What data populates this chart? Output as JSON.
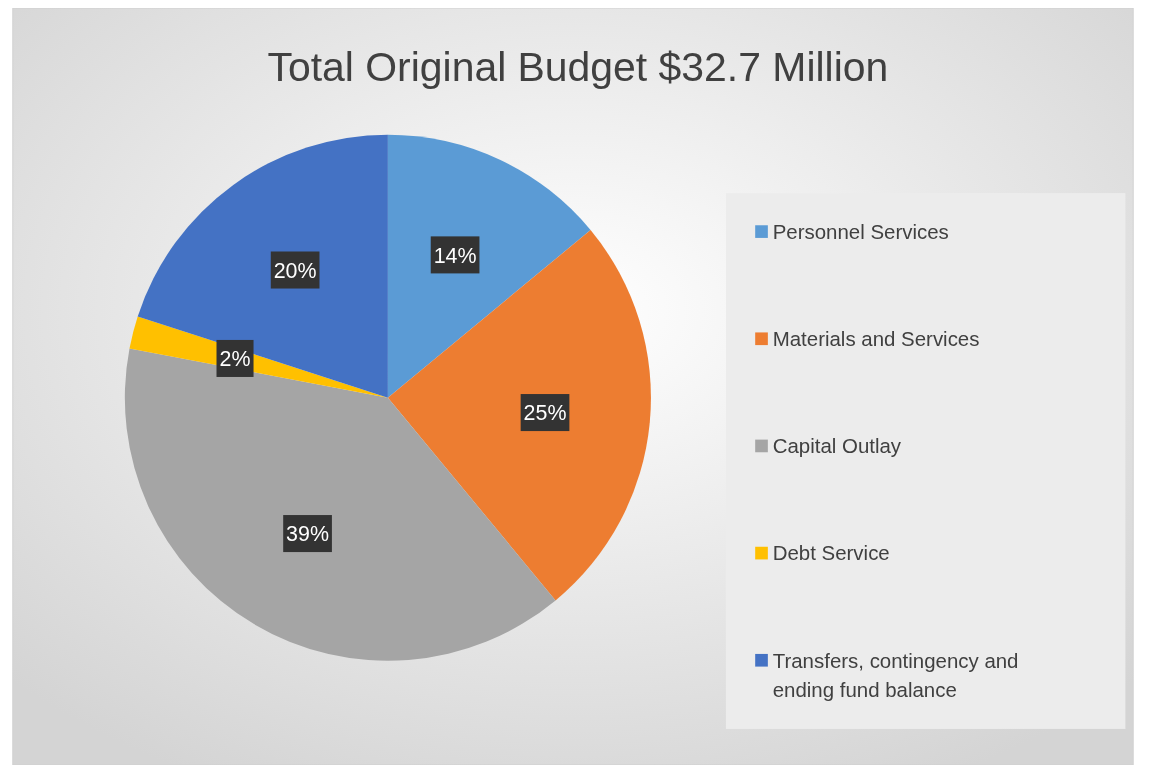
{
  "chart_data": {
    "type": "pie",
    "title": "Total Original Budget $32.7 Million",
    "categories": [
      "Personnel Services",
      "Materials and Services",
      "Capital Outlay",
      "Debt Service",
      "Transfers, contingency and ending fund balance"
    ],
    "values": [
      14,
      25,
      39,
      2,
      20
    ],
    "colors": [
      "#5b9bd5",
      "#ed7d31",
      "#a5a5a5",
      "#ffc000",
      "#4472c4"
    ],
    "value_labels": [
      "14%",
      "25%",
      "39%",
      "2%",
      "20%"
    ],
    "legend": "right"
  }
}
